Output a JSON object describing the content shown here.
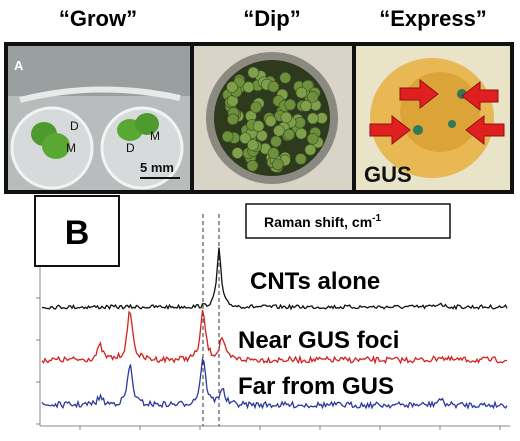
{
  "header": {
    "grow": "“Grow”",
    "dip": "“Dip”",
    "express": "“Express”"
  },
  "panel_a": {
    "label": "A",
    "markers": [
      "D",
      "M",
      "D",
      "M"
    ],
    "scale": "5 mm",
    "gus": "GUS"
  },
  "panel_b": {
    "label": "B",
    "axis_label": "Raman shift, cm",
    "axis_label_exponent": "-1",
    "traces": [
      "CNTs alone",
      "Near GUS foci",
      "Far from GUS"
    ]
  }
}
